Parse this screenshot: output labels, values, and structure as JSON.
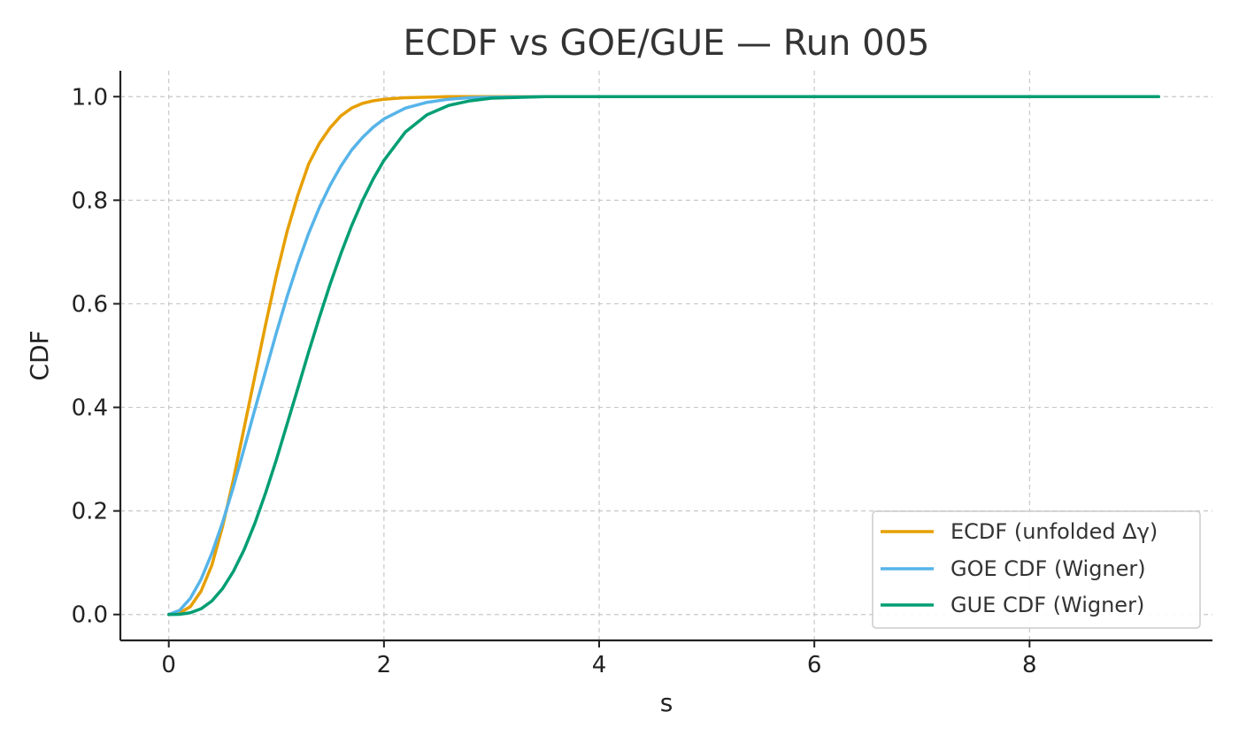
{
  "chart_data": {
    "type": "line",
    "title": "ECDF vs GOE/GUE — Run 005",
    "xlabel": "s",
    "ylabel": "CDF",
    "xlim": [
      -0.45,
      9.7
    ],
    "ylim": [
      -0.05,
      1.05
    ],
    "xticks": [
      0,
      2,
      4,
      6,
      8
    ],
    "yticks": [
      0.0,
      0.2,
      0.4,
      0.6,
      0.8,
      1.0
    ],
    "xtick_labels": [
      "0",
      "2",
      "4",
      "6",
      "8"
    ],
    "ytick_labels": [
      "0.0",
      "0.2",
      "0.4",
      "0.6",
      "0.8",
      "1.0"
    ],
    "grid": true,
    "legend_position": "bottom-right",
    "x": [
      0,
      0.1,
      0.2,
      0.3,
      0.4,
      0.5,
      0.6,
      0.7,
      0.8,
      0.9,
      1.0,
      1.1,
      1.2,
      1.3,
      1.4,
      1.5,
      1.6,
      1.7,
      1.8,
      1.9,
      2.0,
      2.2,
      2.4,
      2.6,
      2.8,
      3.0,
      3.5,
      4.0,
      5.0,
      6.0,
      7.0,
      8.0,
      9.2
    ],
    "series": [
      {
        "name": "ECDF (unfolded Δγ)",
        "color": "#E69F00",
        "values": [
          0.0,
          0.003,
          0.015,
          0.045,
          0.095,
          0.17,
          0.26,
          0.36,
          0.46,
          0.56,
          0.655,
          0.74,
          0.81,
          0.87,
          0.91,
          0.94,
          0.963,
          0.978,
          0.987,
          0.992,
          0.995,
          0.998,
          0.999,
          1.0,
          1.0,
          1.0,
          1.0,
          1.0,
          1.0,
          1.0,
          1.0,
          1.0,
          1.0
        ]
      },
      {
        "name": "GOE CDF (Wigner)",
        "color": "#56B4E9",
        "values": [
          0.0,
          0.008,
          0.031,
          0.068,
          0.118,
          0.178,
          0.246,
          0.32,
          0.396,
          0.47,
          0.544,
          0.614,
          0.678,
          0.736,
          0.786,
          0.829,
          0.866,
          0.897,
          0.921,
          0.941,
          0.957,
          0.978,
          0.989,
          0.995,
          0.998,
          0.999,
          1.0,
          1.0,
          1.0,
          1.0,
          1.0,
          1.0,
          1.0
        ]
      },
      {
        "name": "GUE CDF (Wigner)",
        "color": "#009E73",
        "values": [
          0.0,
          0.0004,
          0.0034,
          0.011,
          0.026,
          0.05,
          0.083,
          0.125,
          0.176,
          0.235,
          0.299,
          0.368,
          0.437,
          0.507,
          0.574,
          0.638,
          0.697,
          0.751,
          0.799,
          0.841,
          0.877,
          0.932,
          0.965,
          0.983,
          0.992,
          0.997,
          1.0,
          1.0,
          1.0,
          1.0,
          1.0,
          1.0,
          1.0
        ]
      }
    ]
  }
}
